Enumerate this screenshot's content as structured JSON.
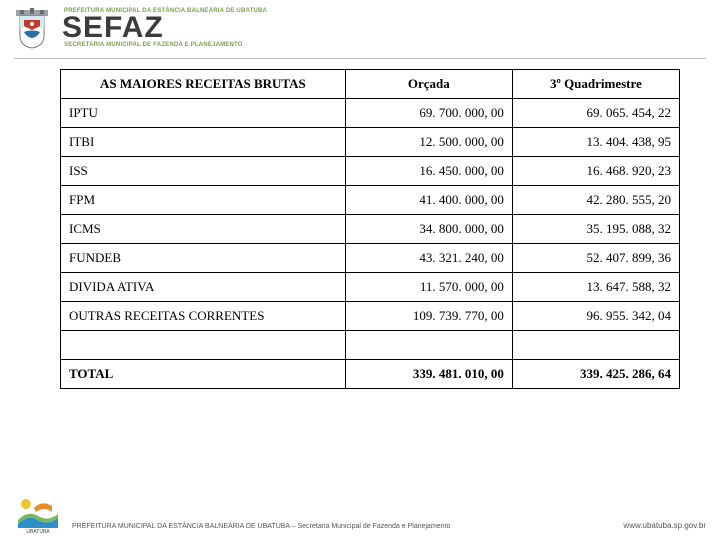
{
  "header": {
    "subtitle_top": "PREFEITURA MUNICIPAL DA ESTÂNCIA BALNEÁRIA DE UBATUBA",
    "title": "SEFAZ",
    "subtitle": "SECRETARIA MUNICIPAL DE FAZENDA E PLANEJAMENTO"
  },
  "table": {
    "type": "table",
    "columns": [
      "AS MAIORES RECEITAS BRUTAS",
      "Orçada",
      "3º Quadrimestre"
    ],
    "rows": [
      {
        "label": "IPTU",
        "orcada": "69. 700. 000, 00",
        "quad": "69. 065. 454, 22"
      },
      {
        "label": "ITBI",
        "orcada": "12. 500. 000, 00",
        "quad": "13. 404. 438, 95"
      },
      {
        "label": "ISS",
        "orcada": "16. 450. 000, 00",
        "quad": "16. 468. 920, 23"
      },
      {
        "label": "FPM",
        "orcada": "41. 400. 000, 00",
        "quad": "42. 280. 555, 20"
      },
      {
        "label": "ICMS",
        "orcada": "34. 800. 000, 00",
        "quad": "35. 195. 088, 32"
      },
      {
        "label": "FUNDEB",
        "orcada": "43. 321. 240, 00",
        "quad": "52. 407. 899, 36"
      },
      {
        "label": "DIVIDA ATIVA",
        "orcada": "11. 570. 000, 00",
        "quad": "13. 647. 588, 32"
      },
      {
        "label": "OUTRAS RECEITAS CORRENTES",
        "orcada": "109. 739. 770, 00",
        "quad": "96. 955. 342, 04"
      }
    ],
    "total": {
      "label": "TOTAL",
      "orcada": "339. 481. 010, 00",
      "quad": "339. 425. 286, 64"
    },
    "colors": {
      "border": "#000000",
      "text": "#000000",
      "background": "#ffffff"
    },
    "font_size": 13
  },
  "footer": {
    "text": "PREFEITURA MUNICIPAL DA ESTÂNCIA BALNEÁRIA DE UBATUBA – Secretaria Municipal de Fazenda e Planejamento",
    "url": "www.ubatuba.sp.gov.br"
  }
}
